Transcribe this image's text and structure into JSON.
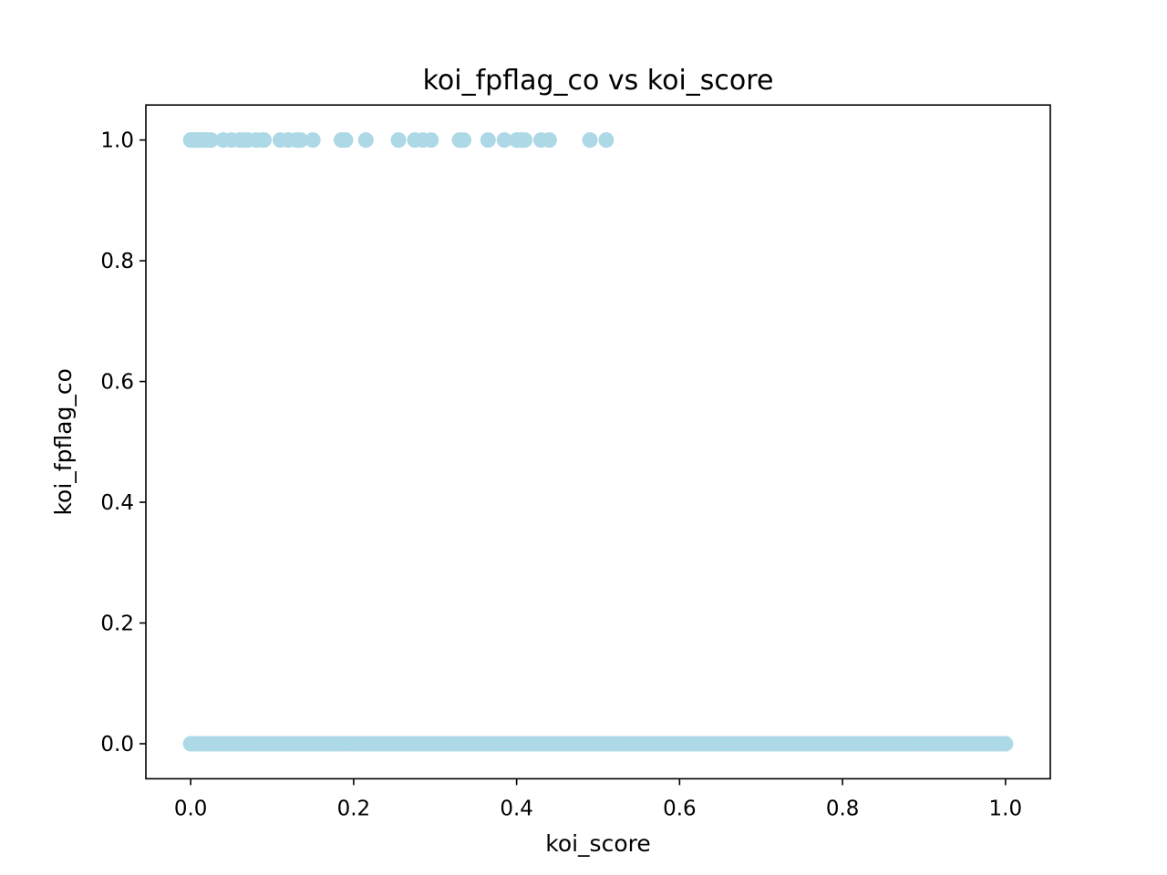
{
  "chart_data": {
    "type": "scatter",
    "title": "koi_fpflag_co vs koi_score",
    "xlabel": "koi_score",
    "ylabel": "koi_fpflag_co",
    "xlim": [
      -0.055,
      1.055
    ],
    "ylim": [
      -0.058,
      1.058
    ],
    "xticks": [
      0.0,
      0.2,
      0.4,
      0.6,
      0.8,
      1.0
    ],
    "xtick_labels": [
      "0.0",
      "0.2",
      "0.4",
      "0.6",
      "0.8",
      "1.0"
    ],
    "yticks": [
      0.0,
      0.2,
      0.4,
      0.6,
      0.8,
      1.0
    ],
    "ytick_labels": [
      "0.0",
      "0.2",
      "0.4",
      "0.6",
      "0.8",
      "1.0"
    ],
    "grid": false,
    "legend": false,
    "marker_color": "#add8e6",
    "series": [
      {
        "x": [
          0.0,
          0.002,
          0.004,
          0.006,
          0.008,
          0.01,
          0.012,
          0.015,
          0.018,
          0.02,
          0.025,
          0.04,
          0.05,
          0.06,
          0.065,
          0.07,
          0.08,
          0.088,
          0.09,
          0.11,
          0.12,
          0.13,
          0.135,
          0.15,
          0.185,
          0.19,
          0.215,
          0.255,
          0.275,
          0.285,
          0.295,
          0.33,
          0.335,
          0.365,
          0.385,
          0.4,
          0.405,
          0.41,
          0.43,
          0.44,
          0.49,
          0.51
        ],
        "y": [
          1,
          1,
          1,
          1,
          1,
          1,
          1,
          1,
          1,
          1,
          1,
          1,
          1,
          1,
          1,
          1,
          1,
          1,
          1,
          1,
          1,
          1,
          1,
          1,
          1,
          1,
          1,
          1,
          1,
          1,
          1,
          1,
          1,
          1,
          1,
          1,
          1,
          1,
          1,
          1,
          1,
          1
        ]
      },
      {
        "x_range": [
          0.0,
          1.0
        ],
        "x_step": 0.005,
        "y_value": 0
      }
    ]
  }
}
